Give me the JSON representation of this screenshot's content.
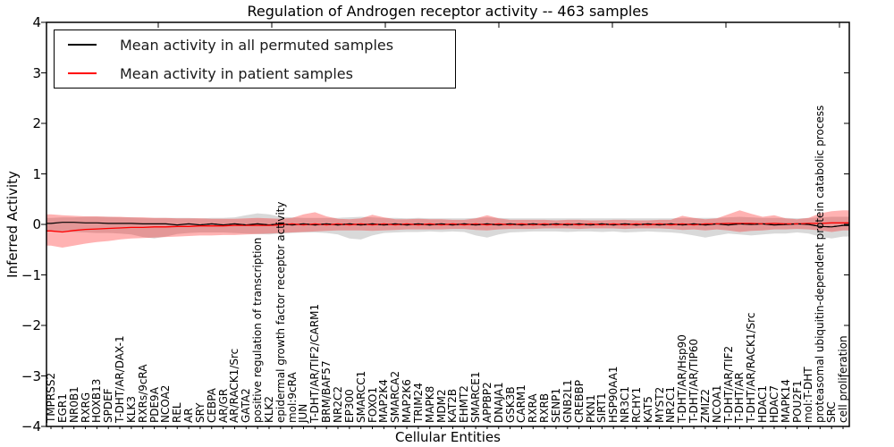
{
  "title": "Regulation of Androgen receptor activity -- 463 samples",
  "axes": {
    "x_label": "Cellular Entities",
    "y_label": "Inferred Activity",
    "y_tick_labels": [
      "4",
      "3",
      "2",
      "1",
      "0",
      "−1",
      "−2",
      "−3",
      "−4"
    ],
    "y_tick_values": [
      4,
      3,
      2,
      1,
      0,
      -1,
      -2,
      -3,
      -4
    ]
  },
  "legend": {
    "items": [
      {
        "label": "Mean activity in all permuted samples",
        "color": "#000000"
      },
      {
        "label": "Mean activity in patient samples",
        "color": "#ff0000"
      }
    ]
  },
  "colors": {
    "permuted_line": "#000000",
    "patient_line": "#ff0000",
    "permuted_band": "rgba(0,0,0,0.15)",
    "patient_band": "rgba(255,0,0,0.30)",
    "border": "#000000",
    "background": "#ffffff"
  },
  "chart_data": {
    "type": "line",
    "title": "Regulation of Androgen receptor activity -- 463 samples",
    "xlabel": "Cellular Entities",
    "ylabel": "Inferred Activity",
    "ylim": [
      -4,
      4
    ],
    "grid": false,
    "legend_position": "upper left",
    "categories": [
      "TMPRSS2",
      "EGR1",
      "NR0B1",
      "RXRG",
      "HOXB13",
      "SPDEF",
      "T-DHT/AR/DAX-1",
      "KLK3",
      "RXRs/9cRA",
      "PDE9A",
      "NCOA2",
      "REL",
      "AR",
      "SRY",
      "CEBPA",
      "AR/GR",
      "AR/RACK1/Src",
      "GATA2",
      "positive regulation of transcription",
      "KLK2",
      "epidermal growth factor receptor activity",
      "mol:9cRA",
      "JUN",
      "T-DHT/AR/TIF2/CARM1",
      "BRM/BAF57",
      "NR2C2",
      "EP300",
      "SMARCC1",
      "FOXO1",
      "MAP2K4",
      "SMARCA2",
      "MAP2K6",
      "TRIM24",
      "MAPK8",
      "MDM2",
      "KAT2B",
      "EHMT2",
      "SMARCE1",
      "APPBP2",
      "DNAJA1",
      "GSK3B",
      "CARM1",
      "RXRA",
      "RXRB",
      "SENP1",
      "GNB2L1",
      "CREBBP",
      "PKN1",
      "SIRT1",
      "HSP90AA1",
      "NR3C1",
      "RCHY1",
      "KAT5",
      "MYST2",
      "NR2C1",
      "T-DHT/AR/Hsp90",
      "T-DHT/AR/TIP60",
      "ZMIZ2",
      "NCOA1",
      "T-DHT/AR/TIF2",
      "T-DHT/AR",
      "T-DHT/AR/RACK1/Src",
      "HDAC1",
      "HDAC7",
      "MAPK14",
      "POU2F1",
      "mol:T-DHT",
      "proteasomal ubiquitin-dependent protein catabolic process",
      "SRC",
      "cell proliferation"
    ],
    "series": [
      {
        "name": "Mean activity in all permuted samples",
        "color": "#000000",
        "values": [
          0.02,
          0.04,
          0.04,
          0.03,
          0.03,
          0.02,
          0.02,
          0.02,
          0.01,
          0.01,
          0.01,
          -0.01,
          0.01,
          -0.01,
          0.01,
          -0.01,
          0.01,
          -0.01,
          0.01,
          -0.01,
          0.01,
          -0.01,
          0.01,
          -0.01,
          0.01,
          -0.01,
          0.01,
          -0.01,
          0.01,
          -0.01,
          0.01,
          -0.01,
          0.01,
          -0.01,
          0.01,
          -0.01,
          0.01,
          -0.01,
          0.01,
          -0.01,
          0.01,
          -0.01,
          0.01,
          -0.01,
          0.01,
          -0.01,
          0.01,
          -0.01,
          0.01,
          -0.01,
          0.01,
          -0.01,
          0.01,
          -0.01,
          0.01,
          -0.01,
          0.01,
          -0.01,
          0.01,
          -0.01,
          0.01,
          0.0,
          0.01,
          -0.01,
          0.0,
          0.01,
          0.0,
          -0.04,
          -0.05,
          -0.02
        ]
      },
      {
        "name": "Mean activity in patient samples",
        "color": "#ff0000",
        "values": [
          -0.13,
          -0.15,
          -0.12,
          -0.1,
          -0.09,
          -0.08,
          -0.07,
          -0.06,
          -0.06,
          -0.05,
          -0.05,
          -0.04,
          -0.04,
          -0.03,
          -0.03,
          -0.03,
          -0.02,
          -0.02,
          -0.02,
          -0.02,
          -0.01,
          0.01,
          -0.01,
          0.01,
          -0.01,
          0.01,
          -0.01,
          0.01,
          -0.01,
          0.01,
          -0.01,
          0.01,
          -0.01,
          0.01,
          -0.01,
          0.01,
          -0.01,
          0.01,
          -0.01,
          0.01,
          -0.01,
          0.01,
          -0.01,
          0.01,
          -0.01,
          0.01,
          -0.01,
          0.01,
          -0.01,
          0.01,
          -0.01,
          0.01,
          -0.01,
          0.01,
          -0.01,
          0.01,
          -0.01,
          0.01,
          0.01,
          0.02,
          0.02,
          0.02,
          0.01,
          0.02,
          0.01,
          0.01,
          0.02,
          0.02,
          0.03,
          0.03
        ]
      }
    ],
    "bands": [
      {
        "name": "permuted-sample-range",
        "color": "rgba(0,0,0,0.15)",
        "upper": [
          0.13,
          0.14,
          0.14,
          0.15,
          0.15,
          0.15,
          0.14,
          0.14,
          0.13,
          0.13,
          0.13,
          0.13,
          0.13,
          0.12,
          0.13,
          0.13,
          0.14,
          0.18,
          0.22,
          0.2,
          0.15,
          0.14,
          0.13,
          0.13,
          0.13,
          0.13,
          0.14,
          0.15,
          0.14,
          0.13,
          0.13,
          0.12,
          0.13,
          0.12,
          0.12,
          0.12,
          0.12,
          0.13,
          0.14,
          0.13,
          0.12,
          0.12,
          0.12,
          0.12,
          0.12,
          0.12,
          0.12,
          0.12,
          0.12,
          0.12,
          0.12,
          0.12,
          0.12,
          0.12,
          0.12,
          0.13,
          0.13,
          0.13,
          0.13,
          0.14,
          0.15,
          0.14,
          0.13,
          0.13,
          0.13,
          0.12,
          0.13,
          0.14,
          0.15,
          0.15
        ],
        "lower": [
          -0.14,
          -0.15,
          -0.15,
          -0.16,
          -0.17,
          -0.17,
          -0.18,
          -0.2,
          -0.25,
          -0.28,
          -0.24,
          -0.19,
          -0.17,
          -0.16,
          -0.16,
          -0.16,
          -0.17,
          -0.18,
          -0.19,
          -0.2,
          -0.18,
          -0.17,
          -0.16,
          -0.16,
          -0.17,
          -0.2,
          -0.28,
          -0.3,
          -0.22,
          -0.17,
          -0.16,
          -0.15,
          -0.15,
          -0.14,
          -0.15,
          -0.14,
          -0.15,
          -0.22,
          -0.26,
          -0.2,
          -0.16,
          -0.15,
          -0.14,
          -0.14,
          -0.14,
          -0.15,
          -0.14,
          -0.14,
          -0.15,
          -0.14,
          -0.16,
          -0.15,
          -0.14,
          -0.15,
          -0.16,
          -0.18,
          -0.22,
          -0.26,
          -0.22,
          -0.18,
          -0.2,
          -0.22,
          -0.2,
          -0.18,
          -0.18,
          -0.16,
          -0.18,
          -0.24,
          -0.28,
          -0.24
        ]
      },
      {
        "name": "patient-sample-range",
        "color": "rgba(255,0,0,0.30)",
        "upper": [
          0.2,
          0.18,
          0.17,
          0.16,
          0.16,
          0.15,
          0.15,
          0.14,
          0.14,
          0.13,
          0.13,
          0.12,
          0.12,
          0.12,
          0.11,
          0.11,
          0.11,
          0.12,
          0.13,
          0.12,
          0.11,
          0.13,
          0.2,
          0.24,
          0.16,
          0.11,
          0.1,
          0.12,
          0.19,
          0.14,
          0.1,
          0.1,
          0.11,
          0.1,
          0.1,
          0.09,
          0.09,
          0.12,
          0.18,
          0.12,
          0.09,
          0.09,
          0.09,
          0.09,
          0.08,
          0.09,
          0.09,
          0.08,
          0.08,
          0.09,
          0.09,
          0.08,
          0.08,
          0.09,
          0.09,
          0.17,
          0.13,
          0.1,
          0.12,
          0.2,
          0.28,
          0.21,
          0.15,
          0.18,
          0.12,
          0.1,
          0.13,
          0.22,
          0.26,
          0.28
        ],
        "lower": [
          -0.42,
          -0.46,
          -0.42,
          -0.38,
          -0.35,
          -0.33,
          -0.3,
          -0.28,
          -0.27,
          -0.26,
          -0.25,
          -0.24,
          -0.23,
          -0.22,
          -0.22,
          -0.21,
          -0.21,
          -0.2,
          -0.19,
          -0.18,
          -0.17,
          -0.16,
          -0.15,
          -0.14,
          -0.13,
          -0.12,
          -0.12,
          -0.12,
          -0.13,
          -0.12,
          -0.11,
          -0.1,
          -0.1,
          -0.1,
          -0.1,
          -0.09,
          -0.09,
          -0.11,
          -0.12,
          -0.1,
          -0.09,
          -0.09,
          -0.09,
          -0.08,
          -0.08,
          -0.08,
          -0.09,
          -0.08,
          -0.08,
          -0.08,
          -0.09,
          -0.08,
          -0.08,
          -0.08,
          -0.09,
          -0.11,
          -0.1,
          -0.12,
          -0.1,
          -0.12,
          -0.15,
          -0.13,
          -0.12,
          -0.1,
          -0.1,
          -0.09,
          -0.1,
          -0.12,
          -0.15,
          -0.12
        ]
      }
    ]
  }
}
